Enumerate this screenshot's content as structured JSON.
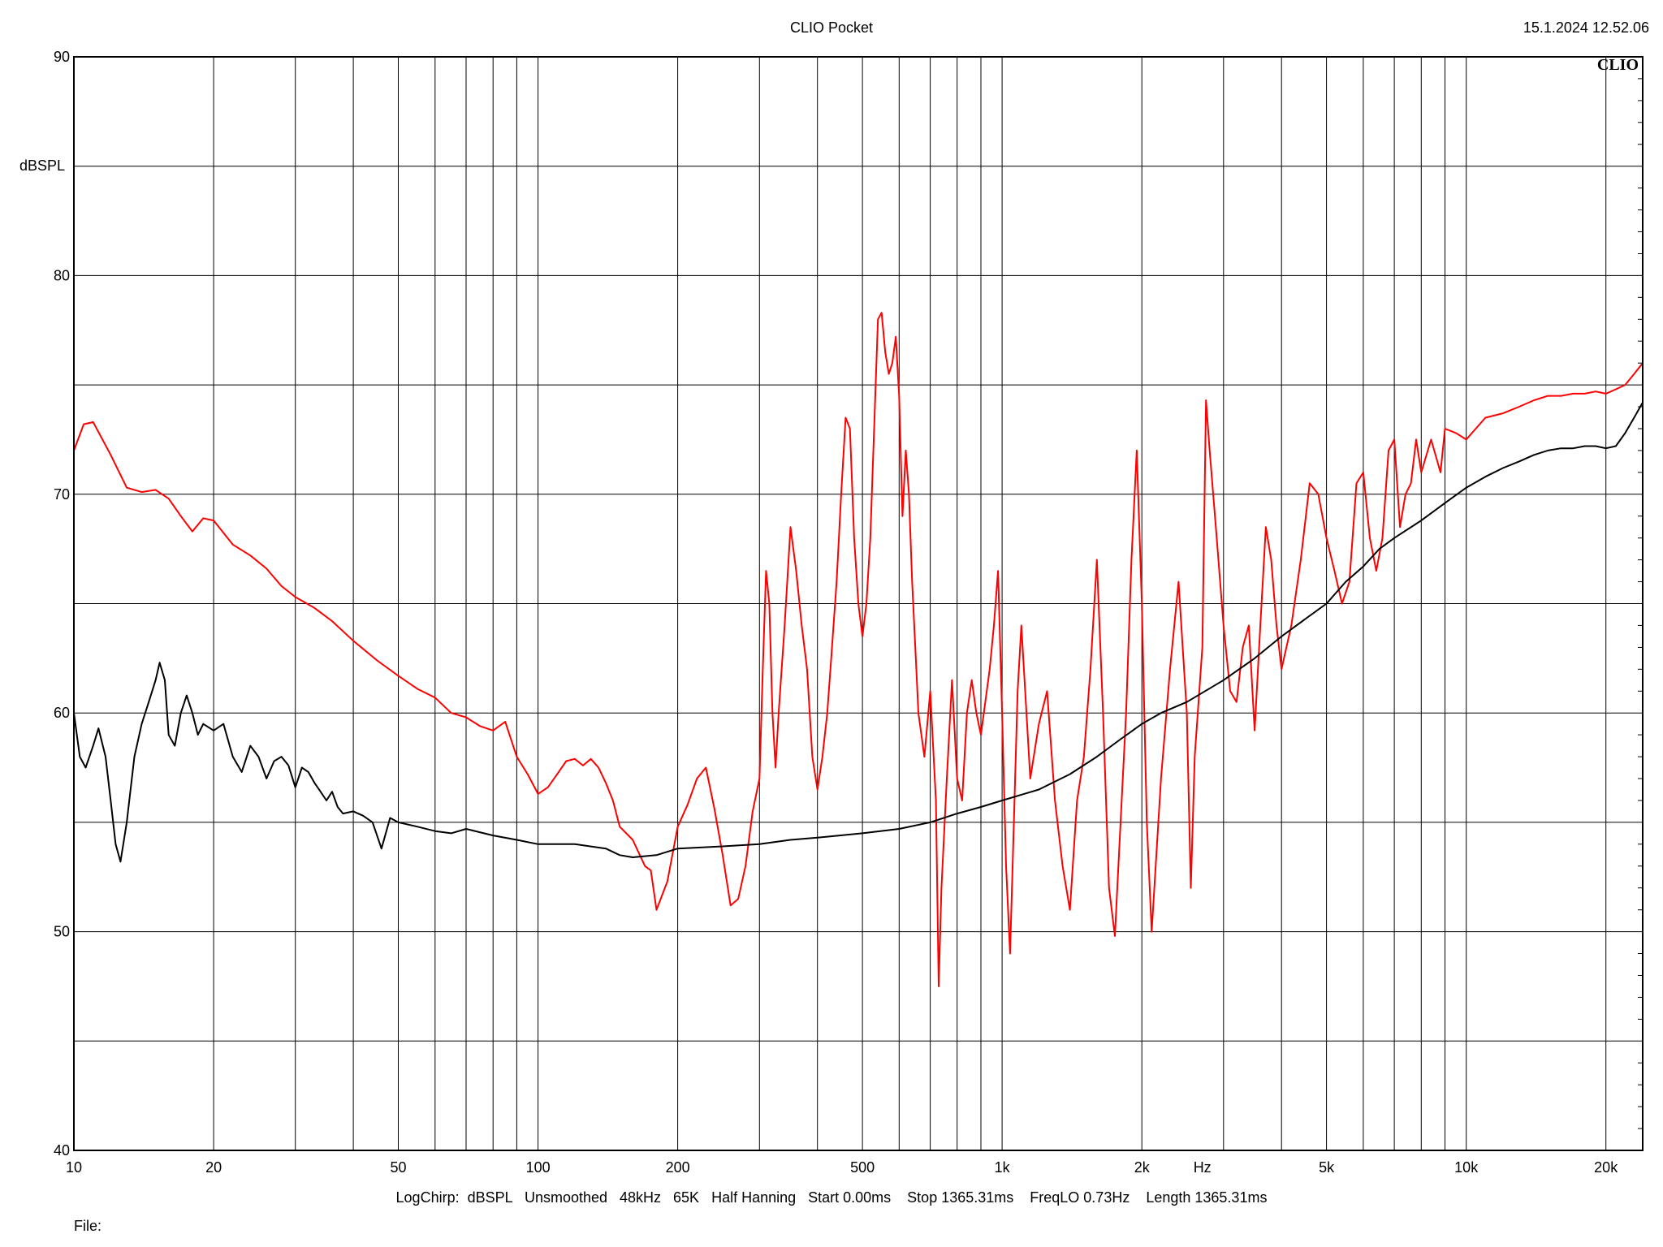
{
  "header": {
    "title": "CLIO Pocket",
    "timestamp": "15.1.2024 12.52.06",
    "logo": "CLIO"
  },
  "footer": {
    "settings": "LogChirp:  dBSPL   Unsmoothed   48kHz   65K   Half Hanning   Start 0.00ms    Stop 1365.31ms    FreqLO 0.73Hz    Length 1365.31ms",
    "file_label": "File:"
  },
  "chart_data": {
    "type": "line",
    "title": "CLIO Pocket",
    "xlabel": "Hz",
    "ylabel": "dBSPL",
    "x_scale": "log",
    "xlim": [
      10,
      24000
    ],
    "ylim": [
      40,
      90
    ],
    "grid": true,
    "x_tick_labels": [
      {
        "value": 10,
        "label": "10"
      },
      {
        "value": 20,
        "label": "20"
      },
      {
        "value": 50,
        "label": "50"
      },
      {
        "value": 100,
        "label": "100"
      },
      {
        "value": 200,
        "label": "200"
      },
      {
        "value": 500,
        "label": "500"
      },
      {
        "value": 1000,
        "label": "1k"
      },
      {
        "value": 2000,
        "label": "2k"
      },
      {
        "value": 5000,
        "label": "5k"
      },
      {
        "value": 10000,
        "label": "10k"
      },
      {
        "value": 20000,
        "label": "20k"
      }
    ],
    "y_tick_labels": [
      {
        "value": 90,
        "label": "90"
      },
      {
        "value": 80,
        "label": "80"
      },
      {
        "value": 70,
        "label": "70"
      },
      {
        "value": 60,
        "label": "60"
      },
      {
        "value": 50,
        "label": "50"
      },
      {
        "value": 40,
        "label": "40"
      }
    ],
    "series": [
      {
        "color": "#ff0000",
        "points": [
          [
            10,
            72.0
          ],
          [
            10.5,
            73.2
          ],
          [
            11,
            73.3
          ],
          [
            12,
            71.8
          ],
          [
            13,
            70.3
          ],
          [
            14,
            70.1
          ],
          [
            15,
            70.2
          ],
          [
            16,
            69.8
          ],
          [
            17,
            69.0
          ],
          [
            18,
            68.3
          ],
          [
            19,
            68.9
          ],
          [
            20,
            68.8
          ],
          [
            22,
            67.7
          ],
          [
            24,
            67.2
          ],
          [
            26,
            66.6
          ],
          [
            28,
            65.8
          ],
          [
            30,
            65.3
          ],
          [
            33,
            64.8
          ],
          [
            36,
            64.2
          ],
          [
            40,
            63.3
          ],
          [
            45,
            62.4
          ],
          [
            50,
            61.7
          ],
          [
            55,
            61.1
          ],
          [
            60,
            60.7
          ],
          [
            65,
            60.0
          ],
          [
            70,
            59.8
          ],
          [
            75,
            59.4
          ],
          [
            80,
            59.2
          ],
          [
            85,
            59.6
          ],
          [
            90,
            58.0
          ],
          [
            95,
            57.2
          ],
          [
            100,
            56.3
          ],
          [
            105,
            56.6
          ],
          [
            110,
            57.2
          ],
          [
            115,
            57.8
          ],
          [
            120,
            57.9
          ],
          [
            125,
            57.6
          ],
          [
            130,
            57.9
          ],
          [
            135,
            57.5
          ],
          [
            140,
            56.8
          ],
          [
            145,
            56.0
          ],
          [
            150,
            54.8
          ],
          [
            160,
            54.2
          ],
          [
            170,
            53.0
          ],
          [
            175,
            52.8
          ],
          [
            180,
            51.0
          ],
          [
            190,
            52.3
          ],
          [
            200,
            54.8
          ],
          [
            210,
            55.8
          ],
          [
            220,
            57.0
          ],
          [
            230,
            57.5
          ],
          [
            240,
            55.6
          ],
          [
            250,
            53.5
          ],
          [
            260,
            51.2
          ],
          [
            270,
            51.5
          ],
          [
            280,
            53.0
          ],
          [
            290,
            55.5
          ],
          [
            300,
            57.0
          ],
          [
            305,
            62.0
          ],
          [
            310,
            66.5
          ],
          [
            315,
            65.0
          ],
          [
            320,
            60.0
          ],
          [
            325,
            57.5
          ],
          [
            330,
            60.0
          ],
          [
            340,
            64.0
          ],
          [
            350,
            68.5
          ],
          [
            360,
            66.5
          ],
          [
            370,
            64.0
          ],
          [
            380,
            62.0
          ],
          [
            390,
            58.0
          ],
          [
            400,
            56.5
          ],
          [
            410,
            58.0
          ],
          [
            420,
            60.0
          ],
          [
            430,
            63.0
          ],
          [
            440,
            66.0
          ],
          [
            450,
            70.0
          ],
          [
            460,
            73.5
          ],
          [
            470,
            73.0
          ],
          [
            480,
            68.0
          ],
          [
            490,
            65.0
          ],
          [
            500,
            63.5
          ],
          [
            510,
            65.0
          ],
          [
            520,
            68.0
          ],
          [
            530,
            73.0
          ],
          [
            540,
            78.0
          ],
          [
            550,
            78.3
          ],
          [
            560,
            76.5
          ],
          [
            570,
            75.5
          ],
          [
            580,
            76.0
          ],
          [
            590,
            77.2
          ],
          [
            600,
            74.5
          ],
          [
            610,
            69.0
          ],
          [
            620,
            72.0
          ],
          [
            630,
            70.0
          ],
          [
            640,
            66.0
          ],
          [
            650,
            63.0
          ],
          [
            660,
            60.0
          ],
          [
            680,
            58.0
          ],
          [
            700,
            61.0
          ],
          [
            720,
            56.0
          ],
          [
            730,
            47.5
          ],
          [
            740,
            52.0
          ],
          [
            760,
            57.0
          ],
          [
            780,
            61.5
          ],
          [
            800,
            57.0
          ],
          [
            820,
            56.0
          ],
          [
            840,
            60.0
          ],
          [
            860,
            61.5
          ],
          [
            880,
            60.0
          ],
          [
            900,
            59.0
          ],
          [
            920,
            60.5
          ],
          [
            940,
            62.0
          ],
          [
            960,
            64.0
          ],
          [
            980,
            66.5
          ],
          [
            1000,
            60.0
          ],
          [
            1020,
            53.0
          ],
          [
            1040,
            49.0
          ],
          [
            1060,
            55.0
          ],
          [
            1080,
            61.0
          ],
          [
            1100,
            64.0
          ],
          [
            1150,
            57.0
          ],
          [
            1200,
            59.5
          ],
          [
            1250,
            61.0
          ],
          [
            1300,
            56.0
          ],
          [
            1350,
            53.0
          ],
          [
            1400,
            51.0
          ],
          [
            1450,
            56.0
          ],
          [
            1500,
            58.0
          ],
          [
            1550,
            62.0
          ],
          [
            1600,
            67.0
          ],
          [
            1650,
            60.0
          ],
          [
            1700,
            52.0
          ],
          [
            1750,
            49.8
          ],
          [
            1800,
            55.0
          ],
          [
            1850,
            60.0
          ],
          [
            1900,
            67.0
          ],
          [
            1950,
            72.0
          ],
          [
            2000,
            65.0
          ],
          [
            2050,
            55.0
          ],
          [
            2100,
            50.0
          ],
          [
            2200,
            57.0
          ],
          [
            2300,
            62.0
          ],
          [
            2400,
            66.0
          ],
          [
            2500,
            60.0
          ],
          [
            2550,
            52.0
          ],
          [
            2600,
            58.0
          ],
          [
            2700,
            63.0
          ],
          [
            2750,
            74.3
          ],
          [
            2800,
            72.0
          ],
          [
            2900,
            68.0
          ],
          [
            3000,
            64.0
          ],
          [
            3100,
            61.0
          ],
          [
            3200,
            60.5
          ],
          [
            3300,
            63.0
          ],
          [
            3400,
            64.0
          ],
          [
            3500,
            59.2
          ],
          [
            3600,
            64.0
          ],
          [
            3700,
            68.5
          ],
          [
            3800,
            67.0
          ],
          [
            3900,
            64.0
          ],
          [
            4000,
            62.0
          ],
          [
            4200,
            64.0
          ],
          [
            4400,
            67.0
          ],
          [
            4600,
            70.5
          ],
          [
            4800,
            70.0
          ],
          [
            5000,
            68.0
          ],
          [
            5200,
            66.5
          ],
          [
            5400,
            65.0
          ],
          [
            5600,
            66.0
          ],
          [
            5800,
            70.5
          ],
          [
            6000,
            71.0
          ],
          [
            6200,
            68.0
          ],
          [
            6400,
            66.5
          ],
          [
            6600,
            68.0
          ],
          [
            6800,
            72.0
          ],
          [
            7000,
            72.5
          ],
          [
            7200,
            68.5
          ],
          [
            7400,
            70.0
          ],
          [
            7600,
            70.5
          ],
          [
            7800,
            72.5
          ],
          [
            8000,
            71.0
          ],
          [
            8400,
            72.5
          ],
          [
            8800,
            71.0
          ],
          [
            9000,
            73.0
          ],
          [
            9500,
            72.8
          ],
          [
            10000,
            72.5
          ],
          [
            11000,
            73.5
          ],
          [
            12000,
            73.7
          ],
          [
            13000,
            74.0
          ],
          [
            14000,
            74.3
          ],
          [
            15000,
            74.5
          ],
          [
            16000,
            74.5
          ],
          [
            17000,
            74.6
          ],
          [
            18000,
            74.6
          ],
          [
            19000,
            74.7
          ],
          [
            20000,
            74.6
          ],
          [
            21000,
            74.8
          ],
          [
            22000,
            75.0
          ],
          [
            23000,
            75.5
          ],
          [
            24000,
            76.0
          ]
        ]
      },
      {
        "color": "#000000",
        "points": [
          [
            10,
            60.0
          ],
          [
            10.3,
            58.0
          ],
          [
            10.6,
            57.5
          ],
          [
            11,
            58.5
          ],
          [
            11.3,
            59.3
          ],
          [
            11.7,
            58.0
          ],
          [
            12,
            56.0
          ],
          [
            12.3,
            54.0
          ],
          [
            12.6,
            53.2
          ],
          [
            13,
            55.0
          ],
          [
            13.5,
            58.0
          ],
          [
            14,
            59.5
          ],
          [
            14.5,
            60.5
          ],
          [
            15,
            61.5
          ],
          [
            15.3,
            62.3
          ],
          [
            15.7,
            61.5
          ],
          [
            16,
            59.0
          ],
          [
            16.5,
            58.5
          ],
          [
            17,
            60.0
          ],
          [
            17.5,
            60.8
          ],
          [
            18,
            60.0
          ],
          [
            18.5,
            59.0
          ],
          [
            19,
            59.5
          ],
          [
            20,
            59.2
          ],
          [
            21,
            59.5
          ],
          [
            22,
            58.0
          ],
          [
            23,
            57.3
          ],
          [
            24,
            58.5
          ],
          [
            25,
            58.0
          ],
          [
            26,
            57.0
          ],
          [
            27,
            57.8
          ],
          [
            28,
            58.0
          ],
          [
            29,
            57.6
          ],
          [
            30,
            56.6
          ],
          [
            31,
            57.5
          ],
          [
            32,
            57.3
          ],
          [
            33,
            56.8
          ],
          [
            34,
            56.4
          ],
          [
            35,
            56.0
          ],
          [
            36,
            56.4
          ],
          [
            37,
            55.7
          ],
          [
            38,
            55.4
          ],
          [
            40,
            55.5
          ],
          [
            42,
            55.3
          ],
          [
            44,
            55.0
          ],
          [
            46,
            53.8
          ],
          [
            48,
            55.2
          ],
          [
            50,
            55.0
          ],
          [
            55,
            54.8
          ],
          [
            60,
            54.6
          ],
          [
            65,
            54.5
          ],
          [
            70,
            54.7
          ],
          [
            80,
            54.4
          ],
          [
            90,
            54.2
          ],
          [
            100,
            54.0
          ],
          [
            120,
            54.0
          ],
          [
            140,
            53.8
          ],
          [
            150,
            53.5
          ],
          [
            160,
            53.4
          ],
          [
            180,
            53.5
          ],
          [
            200,
            53.8
          ],
          [
            250,
            53.9
          ],
          [
            300,
            54.0
          ],
          [
            350,
            54.2
          ],
          [
            400,
            54.3
          ],
          [
            500,
            54.5
          ],
          [
            600,
            54.7
          ],
          [
            700,
            55.0
          ],
          [
            800,
            55.4
          ],
          [
            900,
            55.7
          ],
          [
            1000,
            56.0
          ],
          [
            1200,
            56.5
          ],
          [
            1400,
            57.2
          ],
          [
            1600,
            58.0
          ],
          [
            1800,
            58.8
          ],
          [
            2000,
            59.5
          ],
          [
            2200,
            60.0
          ],
          [
            2500,
            60.5
          ],
          [
            3000,
            61.5
          ],
          [
            3500,
            62.5
          ],
          [
            4000,
            63.5
          ],
          [
            4500,
            64.3
          ],
          [
            5000,
            65.0
          ],
          [
            5500,
            66.0
          ],
          [
            6000,
            66.7
          ],
          [
            6500,
            67.5
          ],
          [
            7000,
            68.0
          ],
          [
            8000,
            68.8
          ],
          [
            9000,
            69.6
          ],
          [
            10000,
            70.3
          ],
          [
            11000,
            70.8
          ],
          [
            12000,
            71.2
          ],
          [
            13000,
            71.5
          ],
          [
            14000,
            71.8
          ],
          [
            15000,
            72.0
          ],
          [
            16000,
            72.1
          ],
          [
            17000,
            72.1
          ],
          [
            18000,
            72.2
          ],
          [
            19000,
            72.2
          ],
          [
            20000,
            72.1
          ],
          [
            21000,
            72.2
          ],
          [
            22000,
            72.8
          ],
          [
            23000,
            73.5
          ],
          [
            24000,
            74.2
          ]
        ]
      }
    ]
  }
}
